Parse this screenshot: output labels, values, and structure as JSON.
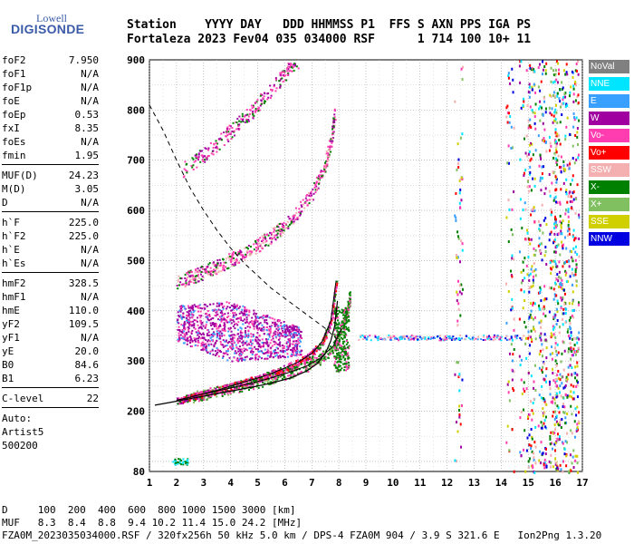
{
  "logo": {
    "line1": "Lowell",
    "line2": "DIGISONDE"
  },
  "header": {
    "labels": "Station    YYYY DAY   DDD HHMMSS P1  FFS S AXN PPS IGA PS",
    "values": "Fortaleza 2023 Fev04 035 034000 RSF      1 714 100 10+ 11"
  },
  "params_groups": [
    [
      {
        "label": "foF2",
        "value": "7.950"
      },
      {
        "label": "foF1",
        "value": "N/A"
      },
      {
        "label": "foF1p",
        "value": "N/A"
      },
      {
        "label": "foE",
        "value": "N/A"
      },
      {
        "label": "foEp",
        "value": "0.53"
      },
      {
        "label": "fxI",
        "value": "8.35"
      },
      {
        "label": "foEs",
        "value": "N/A"
      },
      {
        "label": "fmin",
        "value": "1.95"
      }
    ],
    [
      {
        "label": "MUF(D)",
        "value": "24.23"
      },
      {
        "label": "M(D)",
        "value": "3.05"
      },
      {
        "label": "D",
        "value": "N/A"
      }
    ],
    [
      {
        "label": "h`F",
        "value": "225.0"
      },
      {
        "label": "h`F2",
        "value": "225.0"
      },
      {
        "label": "h`E",
        "value": "N/A"
      },
      {
        "label": "h`Es",
        "value": "N/A"
      }
    ],
    [
      {
        "label": "hmF2",
        "value": "328.5"
      },
      {
        "label": "hmF1",
        "value": "N/A"
      },
      {
        "label": "hmE",
        "value": "110.0"
      },
      {
        "label": "yF2",
        "value": "109.5"
      },
      {
        "label": "yF1",
        "value": "N/A"
      },
      {
        "label": "yE",
        "value": "20.0"
      },
      {
        "label": "B0",
        "value": "84.6"
      },
      {
        "label": "B1",
        "value": "6.23"
      }
    ],
    [
      {
        "label": "C-level",
        "value": "22"
      }
    ]
  ],
  "auto": {
    "line1": "Auto:",
    "line2": "Artist5",
    "line3": "500200"
  },
  "legend": [
    {
      "label": "NoVal",
      "color": "#808080"
    },
    {
      "label": "NNE",
      "color": "#00e5ff"
    },
    {
      "label": "E",
      "color": "#3aa0ff"
    },
    {
      "label": "W",
      "color": "#a000a0"
    },
    {
      "label": "Vo-",
      "color": "#ff3db0"
    },
    {
      "label": "Vo+",
      "color": "#ff0000"
    },
    {
      "label": "SSW",
      "color": "#f4b0b0"
    },
    {
      "label": "X-",
      "color": "#008000"
    },
    {
      "label": "X+",
      "color": "#80c060"
    },
    {
      "label": "SSE",
      "color": "#d0d000"
    },
    {
      "label": "NNW",
      "color": "#0000e0"
    }
  ],
  "footer": {
    "line1": "D     100  200  400  600  800 1000 1500 3000 [km]",
    "line2": "MUF   8.3  8.4  8.8  9.4 10.2 11.4 15.0 24.2 [MHz]",
    "line3": "FZA0M_2023035034000.RSF / 320fx256h 50 kHz 5.0 km / DPS-4 FZA0M 904 / 3.9 S 321.6 E   Ion2Png 1.3.20"
  },
  "chart_data": {
    "type": "scatter",
    "xlim": [
      1,
      17
    ],
    "ylim": [
      80,
      900
    ],
    "x_ticks": [
      1,
      2,
      3,
      4,
      5,
      6,
      7,
      8,
      9,
      10,
      11,
      12,
      13,
      14,
      15,
      16,
      17
    ],
    "y_ticks": [
      80,
      200,
      300,
      400,
      500,
      600,
      700,
      800,
      900
    ],
    "grid": true,
    "legend_position": "right",
    "traces": {
      "o_trace_f2": {
        "x": [
          2.0,
          2.5,
          3.0,
          3.5,
          4.0,
          4.5,
          5.0,
          5.5,
          6.0,
          6.5,
          7.0,
          7.4,
          7.7,
          7.9
        ],
        "y": [
          222,
          228,
          235,
          242,
          250,
          258,
          266,
          275,
          286,
          298,
          315,
          340,
          380,
          460
        ]
      },
      "x_trace_f2": {
        "x": [
          2.6,
          3.2,
          3.8,
          4.4,
          5.0,
          5.6,
          6.2,
          6.8,
          7.3,
          7.8,
          8.1,
          8.3,
          8.4
        ],
        "y": [
          230,
          237,
          244,
          251,
          259,
          268,
          278,
          290,
          305,
          330,
          365,
          400,
          430
        ]
      },
      "multi2": {
        "x": [
          2.0,
          2.5,
          3.0,
          3.5,
          4.0,
          4.5,
          5.0,
          5.5,
          6.0,
          6.5,
          7.0,
          7.4,
          7.7,
          7.85
        ],
        "y": [
          458,
          468,
          478,
          490,
          503,
          517,
          532,
          550,
          572,
          600,
          635,
          680,
          740,
          800
        ]
      },
      "multi3": {
        "x": [
          2.2,
          2.7,
          3.2,
          3.7,
          4.2,
          4.7,
          5.2,
          5.7,
          6.1,
          6.5
        ],
        "y": [
          680,
          700,
          720,
          745,
          770,
          795,
          825,
          855,
          880,
          900
        ]
      },
      "profile": {
        "x": [
          1.2,
          1.8,
          2.5,
          3.2,
          4.0,
          4.8,
          5.5,
          6.2,
          6.8,
          7.2,
          7.5,
          7.7,
          7.85,
          7.95
        ],
        "y": [
          212,
          218,
          225,
          232,
          240,
          248,
          256,
          266,
          280,
          295,
          315,
          340,
          370,
          420
        ]
      },
      "muf_curve": {
        "x": [
          1.0,
          1.5,
          2.0,
          2.5,
          3.0,
          3.5,
          4.0,
          4.5,
          5.0,
          5.5,
          6.0,
          6.5,
          7.0,
          7.5,
          7.9
        ],
        "y": [
          810,
          760,
          700,
          645,
          600,
          560,
          525,
          495,
          470,
          445,
          425,
          405,
          385,
          365,
          345
        ]
      }
    },
    "spread_f_region": {
      "x": [
        2.0,
        6.6
      ],
      "y": [
        260,
        460
      ]
    },
    "noise_columns": [
      12.4,
      14.3,
      14.8,
      15.1,
      15.5,
      15.9,
      16.1,
      16.4,
      16.7
    ]
  }
}
